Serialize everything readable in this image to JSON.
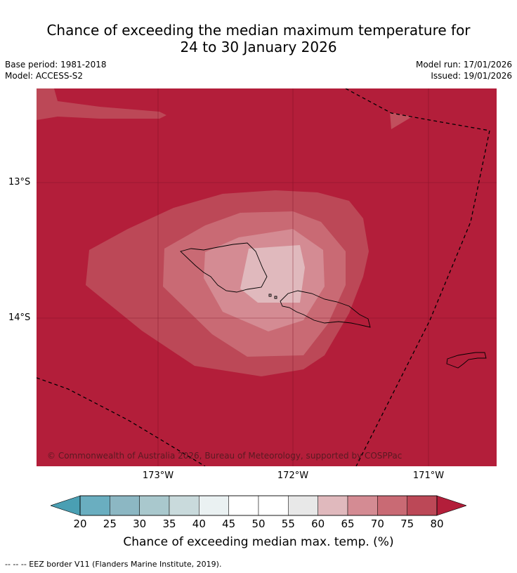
{
  "title_line1": "Chance of exceeding the median maximum temperature for",
  "title_line2": "24 to 30 January 2026",
  "base_period": "Base period: 1981-2018",
  "model": "Model: ACCESS-S2",
  "model_run": "Model run: 17/01/2026",
  "issued": "Issued: 19/01/2026",
  "lat_labels": [
    "13°S",
    "14°S"
  ],
  "lon_labels": [
    "173°W",
    "172°W",
    "171°W"
  ],
  "copyright": "© Commonwealth of Australia 2026, Bureau of Meteorology, supported by COSPPac",
  "colorbar": {
    "label": "Chance of exceeding median max. temp. (%)",
    "ticks": [
      "20",
      "25",
      "30",
      "35",
      "40",
      "45",
      "50",
      "55",
      "60",
      "65",
      "70",
      "75",
      "80"
    ],
    "colors": [
      "#6aaec0",
      "#8cb7c3",
      "#a9c8cd",
      "#c9dadc",
      "#eaf1f2",
      "#ffffff",
      "#ffffff",
      "#e8e8e8",
      "#e0b9bd",
      "#d48b93",
      "#c96a74",
      "#bc4857"
    ],
    "low_color": "#4a9fb3",
    "high_color": "#b31e3a"
  },
  "footnote": "--  --  -- EEZ border V11 (Flanders Marine Institute, 2019).",
  "legend": {
    "eez": "EEZ border V11 (Flanders Marine Institute, 2019)."
  }
}
